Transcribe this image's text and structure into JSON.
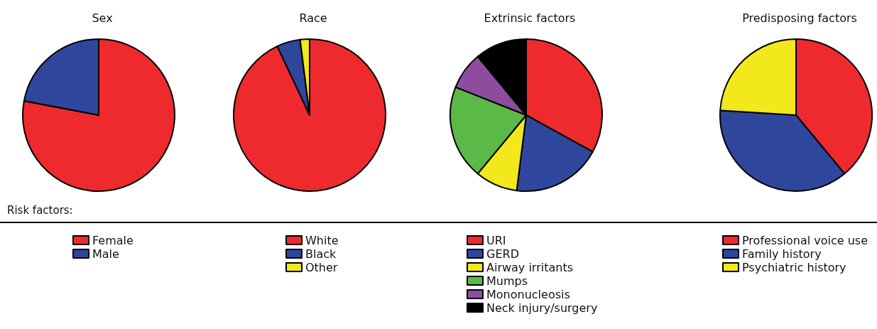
{
  "chart_data": [
    {
      "type": "pie",
      "title": "Sex",
      "categories": [
        "Female",
        "Male"
      ],
      "values": [
        78,
        22
      ],
      "colors": [
        "#ee2a2e",
        "#2e479c"
      ],
      "legend": "bottom",
      "annotations": [
        "Risk factors:"
      ]
    },
    {
      "type": "pie",
      "title": "Race",
      "categories": [
        "White",
        "Black",
        "Other"
      ],
      "values": [
        93,
        5,
        2
      ],
      "colors": [
        "#ee2a2e",
        "#2e479c",
        "#f2e81c"
      ],
      "legend": "bottom"
    },
    {
      "type": "pie",
      "title": "Extrinsic factors",
      "categories": [
        "URI",
        "GERD",
        "Airway irritants",
        "Mumps",
        "Mononucleosis",
        "Neck injury/surgery"
      ],
      "values": [
        33,
        19,
        9,
        20,
        8,
        11
      ],
      "colors": [
        "#ee2a2e",
        "#2e479c",
        "#f2e81c",
        "#5bb947",
        "#8e4c9e",
        "#000000"
      ],
      "legend": "bottom"
    },
    {
      "type": "pie",
      "title": "Predisposing factors",
      "categories": [
        "Professional voice use",
        "Family history",
        "Psychiatric history"
      ],
      "values": [
        39,
        37,
        24
      ],
      "colors": [
        "#ee2a2e",
        "#2e479c",
        "#f2e81c"
      ],
      "legend": "bottom"
    }
  ]
}
